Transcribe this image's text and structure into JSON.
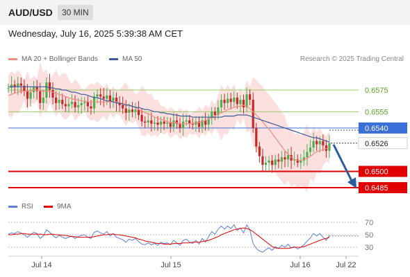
{
  "header": {
    "pair": "AUD/USD",
    "timeframe": "30 MIN"
  },
  "datetime": "Wednesday, July 16, 2025 5:39:38 AM CET",
  "legend": {
    "ma20": "MA 20 + Bollinger Bands",
    "ma50": "MA 50",
    "credit": "Research © 2025 Trading Central",
    "rsi": "RSI",
    "rsi_ma": "9MA"
  },
  "colors": {
    "ma20": "#f28b82",
    "ma50": "#3d5a99",
    "bollinger_fill": "#fbd5d5",
    "up_candle": "#4caf50",
    "down_candle": "#c62828",
    "resistance": "#8bc34a",
    "pivot": "#3a6fd8",
    "support": "#e00000",
    "arrow": "#2c5a9e",
    "rsi": "#5b7fd6",
    "rsi_ma": "#e00000"
  },
  "chart_data": [
    {
      "type": "candlestick",
      "x_labels": [
        "Jul 14",
        "Jul 15",
        "Jul 16",
        "Jul 22"
      ],
      "y_range": [
        0.6475,
        0.66
      ],
      "levels": [
        {
          "label": "0.6575",
          "value": 0.6575,
          "kind": "resistance"
        },
        {
          "label": "0.6555",
          "value": 0.6555,
          "kind": "resistance"
        },
        {
          "label": "0.6540",
          "value": 0.654,
          "kind": "pivot"
        },
        {
          "label": "0.6526",
          "value": 0.6526,
          "kind": "last"
        },
        {
          "label": "0.6500",
          "value": 0.65,
          "kind": "support"
        },
        {
          "label": "0.6485",
          "value": 0.6485,
          "kind": "support"
        }
      ],
      "closes": [
        0.6577,
        0.658,
        0.6578,
        0.6581,
        0.6579,
        0.6574,
        0.6567,
        0.6573,
        0.6578,
        0.6574,
        0.6563,
        0.6568,
        0.6582,
        0.6575,
        0.6568,
        0.6563,
        0.6566,
        0.6562,
        0.656,
        0.6562,
        0.6564,
        0.6559,
        0.6561,
        0.6563,
        0.6564,
        0.656,
        0.6558,
        0.6569,
        0.6571,
        0.6569,
        0.6567,
        0.657,
        0.6565,
        0.6568,
        0.6563,
        0.6561,
        0.6558,
        0.6554,
        0.6557,
        0.6555,
        0.6557,
        0.6552,
        0.6546,
        0.6545,
        0.6547,
        0.6544,
        0.6545,
        0.6543,
        0.6546,
        0.6544,
        0.6545,
        0.6541,
        0.6547,
        0.6544,
        0.654,
        0.6546,
        0.6547,
        0.6544,
        0.6543,
        0.6546,
        0.6541,
        0.6547,
        0.6543,
        0.6549,
        0.6555,
        0.6552,
        0.6559,
        0.6566,
        0.6563,
        0.6567,
        0.6564,
        0.6568,
        0.6562,
        0.6566,
        0.6559,
        0.6571,
        0.6566,
        0.654,
        0.6523,
        0.6514,
        0.6506,
        0.6508,
        0.651,
        0.6506,
        0.6511,
        0.6509,
        0.6513,
        0.6511,
        0.6515,
        0.651,
        0.6511,
        0.6508,
        0.651,
        0.6513,
        0.6518,
        0.6522,
        0.6528,
        0.6525,
        0.6528,
        0.6524,
        0.6519,
        0.6526
      ],
      "ma20": [
        0.657,
        0.6571,
        0.6572,
        0.6573,
        0.6574,
        0.6574,
        0.6574,
        0.6574,
        0.6575,
        0.6575,
        0.6575,
        0.6574,
        0.6574,
        0.6574,
        0.6573,
        0.6572,
        0.6571,
        0.657,
        0.6569,
        0.6568,
        0.6567,
        0.6566,
        0.6566,
        0.6565,
        0.6565,
        0.6564,
        0.6564,
        0.6564,
        0.6564,
        0.6564,
        0.6564,
        0.6564,
        0.6564,
        0.6564,
        0.6564,
        0.6563,
        0.6563,
        0.6562,
        0.6561,
        0.656,
        0.6559,
        0.6557,
        0.6556,
        0.6554,
        0.6553,
        0.6552,
        0.655,
        0.6549,
        0.6548,
        0.6547,
        0.6546,
        0.6545,
        0.6545,
        0.6545,
        0.6544,
        0.6544,
        0.6544,
        0.6544,
        0.6544,
        0.6545,
        0.6545,
        0.6546,
        0.6547,
        0.6548,
        0.655,
        0.6551,
        0.6553,
        0.6554,
        0.6555,
        0.6557,
        0.6558,
        0.6559,
        0.656,
        0.656,
        0.6561,
        0.656,
        0.6558,
        0.6555,
        0.6552,
        0.6549,
        0.6546,
        0.6542,
        0.6539,
        0.6535,
        0.6531,
        0.6527,
        0.6523,
        0.6519,
        0.6516,
        0.6513,
        0.6511,
        0.651,
        0.651,
        0.6511,
        0.6512,
        0.6514,
        0.6516,
        0.6518,
        0.6519,
        0.652,
        0.6521,
        0.6522
      ],
      "ma50": [
        0.6578,
        0.6578,
        0.6578,
        0.6578,
        0.6578,
        0.6578,
        0.6578,
        0.6578,
        0.6578,
        0.6578,
        0.6578,
        0.6578,
        0.6578,
        0.6577,
        0.6577,
        0.6576,
        0.6576,
        0.6575,
        0.6575,
        0.6574,
        0.6573,
        0.6573,
        0.6572,
        0.6571,
        0.6571,
        0.657,
        0.6569,
        0.6568,
        0.6568,
        0.6567,
        0.6566,
        0.6565,
        0.6565,
        0.6564,
        0.6563,
        0.6563,
        0.6562,
        0.6561,
        0.6561,
        0.656,
        0.6559,
        0.6559,
        0.6558,
        0.6557,
        0.6557,
        0.6556,
        0.6555,
        0.6555,
        0.6554,
        0.6554,
        0.6553,
        0.6553,
        0.6552,
        0.6552,
        0.6551,
        0.6551,
        0.6551,
        0.6551,
        0.655,
        0.655,
        0.655,
        0.655,
        0.655,
        0.655,
        0.655,
        0.655,
        0.655,
        0.655,
        0.6551,
        0.6551,
        0.6551,
        0.6551,
        0.6552,
        0.6552,
        0.6552,
        0.6552,
        0.6551,
        0.655,
        0.6549,
        0.6548,
        0.6547,
        0.6546,
        0.6545,
        0.6544,
        0.6543,
        0.6542,
        0.6541,
        0.654,
        0.6539,
        0.6538,
        0.6537,
        0.6536,
        0.6535,
        0.6534,
        0.6533,
        0.6532,
        0.6531,
        0.6531,
        0.653,
        0.6529,
        0.6528,
        0.6527
      ]
    },
    {
      "type": "line",
      "y_ticks": [
        "70",
        "50",
        "30"
      ],
      "y_range": [
        20,
        80
      ],
      "rsi": [
        51,
        53,
        52,
        55,
        53,
        50,
        46,
        50,
        54,
        52,
        44,
        48,
        58,
        54,
        49,
        45,
        49,
        46,
        44,
        46,
        48,
        44,
        47,
        49,
        50,
        46,
        44,
        54,
        56,
        53,
        51,
        55,
        48,
        52,
        46,
        44,
        42,
        38,
        43,
        41,
        44,
        39,
        35,
        34,
        37,
        34,
        36,
        33,
        38,
        36,
        37,
        34,
        41,
        37,
        33,
        41,
        43,
        38,
        36,
        41,
        35,
        44,
        38,
        47,
        55,
        51,
        59,
        64,
        59,
        64,
        60,
        66,
        57,
        61,
        53,
        66,
        58,
        36,
        28,
        24,
        22,
        26,
        29,
        25,
        31,
        28,
        33,
        30,
        35,
        29,
        31,
        27,
        30,
        34,
        40,
        45,
        52,
        48,
        52,
        46,
        41,
        49
      ],
      "rsi_ma": [
        50,
        50,
        51,
        51,
        52,
        52,
        51,
        51,
        51,
        51,
        51,
        50,
        50,
        51,
        51,
        50,
        50,
        49,
        49,
        48,
        47,
        47,
        46,
        46,
        46,
        46,
        46,
        47,
        48,
        49,
        50,
        50,
        51,
        51,
        50,
        50,
        49,
        48,
        47,
        46,
        45,
        43,
        42,
        40,
        39,
        38,
        37,
        36,
        36,
        35,
        35,
        35,
        36,
        36,
        36,
        37,
        37,
        37,
        38,
        38,
        38,
        39,
        40,
        41,
        43,
        45,
        47,
        50,
        52,
        54,
        56,
        58,
        59,
        60,
        61,
        60,
        58,
        55,
        51,
        47,
        43,
        39,
        35,
        31,
        29,
        28,
        28,
        28,
        28,
        29,
        30,
        30,
        30,
        31,
        33,
        35,
        37,
        39,
        41,
        43,
        44,
        46
      ]
    }
  ]
}
